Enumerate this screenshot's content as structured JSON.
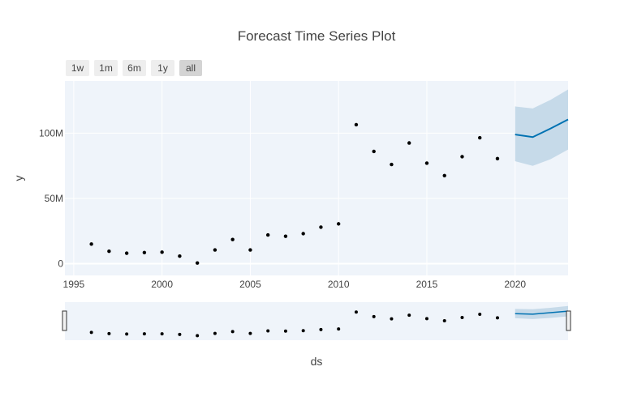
{
  "chart_data": {
    "type": "line",
    "title": "Forecast Time Series Plot",
    "xlabel": "ds",
    "ylabel": "y",
    "xlim": [
      1994.5,
      2023
    ],
    "ylim": [
      -9000000,
      140000000
    ],
    "x_ticks": [
      {
        "value": 1995,
        "label": "1995"
      },
      {
        "value": 2000,
        "label": "2000"
      },
      {
        "value": 2005,
        "label": "2005"
      },
      {
        "value": 2010,
        "label": "2010"
      },
      {
        "value": 2015,
        "label": "2015"
      },
      {
        "value": 2020,
        "label": "2020"
      }
    ],
    "y_ticks": [
      {
        "value": 0,
        "label": "0"
      },
      {
        "value": 50000000,
        "label": "50M"
      },
      {
        "value": 100000000,
        "label": "100M"
      }
    ],
    "grid": true,
    "range_selector": {
      "buttons": [
        "1w",
        "1m",
        "6m",
        "1y",
        "all"
      ],
      "active": "all"
    },
    "range_slider": true,
    "series": [
      {
        "type": "scatter",
        "color": "#000000",
        "x": [
          1996,
          1997,
          1998,
          1999,
          2000,
          2001,
          2002,
          2003,
          2004,
          2005,
          2006,
          2007,
          2008,
          2009,
          2010,
          2011,
          2012,
          2013,
          2014,
          2015,
          2016,
          2017,
          2018,
          2019
        ],
        "values": [
          15000000,
          9500000,
          8000000,
          8500000,
          8800000,
          5800000,
          500000,
          10500000,
          18500000,
          10500000,
          22000000,
          21000000,
          23000000,
          28000000,
          30500000,
          106500000,
          86000000,
          76000000,
          92500000,
          77000000,
          67500000,
          82000000,
          96500000,
          80500000
        ]
      },
      {
        "type": "line",
        "color": "#0072b2",
        "x": [
          2020,
          2021,
          2022,
          2023
        ],
        "values": [
          99000000,
          97000000,
          103500000,
          110500000
        ]
      },
      {
        "type": "band",
        "color": "#c3d8e8",
        "x": [
          2020,
          2021,
          2022,
          2023
        ],
        "upper": [
          120500000,
          119000000,
          125500000,
          133500000
        ],
        "lower": [
          78500000,
          75000000,
          80000000,
          87500000
        ]
      }
    ]
  }
}
